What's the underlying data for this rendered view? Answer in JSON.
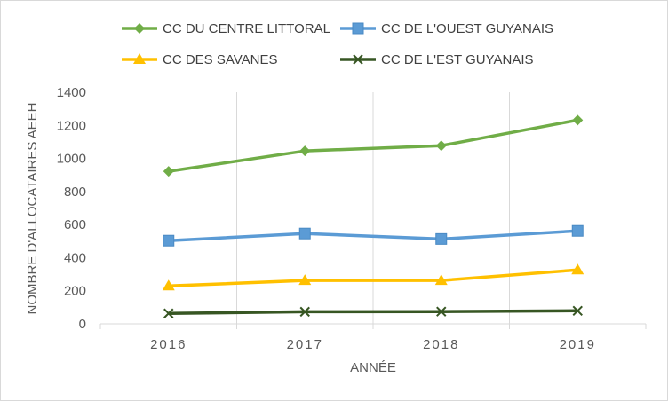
{
  "chart_data": {
    "type": "line",
    "categories": [
      "2016",
      "2017",
      "2018",
      "2019"
    ],
    "series": [
      {
        "name": "CC DU CENTRE LITTORAL",
        "values": [
          922,
          1045,
          1077,
          1232
        ],
        "color": "#70ad47",
        "marker": "diamond"
      },
      {
        "name": "CC DE L'OUEST GUYANAIS",
        "values": [
          503,
          546,
          513,
          562
        ],
        "color": "#5b9bd5",
        "marker": "square"
      },
      {
        "name": "CC DES SAVANES",
        "values": [
          229,
          262,
          262,
          326
        ],
        "color": "#ffc000",
        "marker": "triangle"
      },
      {
        "name": "CC DE L'EST GUYANAIS",
        "values": [
          63,
          73,
          74,
          79
        ],
        "color": "#375623",
        "marker": "x"
      }
    ],
    "title": "",
    "xlabel": "ANNÉE",
    "ylabel": "NOMBRE D'ALLOCATAIRES AEEH",
    "ylim": [
      0,
      1400
    ],
    "yticks": [
      0,
      200,
      400,
      600,
      800,
      1000,
      1200,
      1400
    ],
    "grid": "vertical",
    "legend_position": "top"
  }
}
